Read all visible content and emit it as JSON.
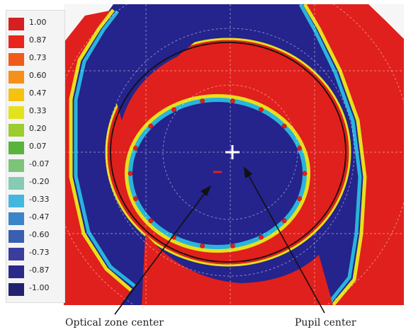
{
  "legend": {
    "entries": [
      {
        "label": "1.00",
        "color": "#d42020"
      },
      {
        "label": "0.87",
        "color": "#e8261b"
      },
      {
        "label": "0.73",
        "color": "#f05a1a"
      },
      {
        "label": "0.60",
        "color": "#f5901a"
      },
      {
        "label": "0.47",
        "color": "#f7c20f"
      },
      {
        "label": "0.33",
        "color": "#e3e21d"
      },
      {
        "label": "0.20",
        "color": "#9ccc2e"
      },
      {
        "label": "0.07",
        "color": "#58b43a"
      },
      {
        "label": "-0.07",
        "color": "#7cc47a"
      },
      {
        "label": "-0.20",
        "color": "#86cbb6"
      },
      {
        "label": "-0.33",
        "color": "#45b6e0"
      },
      {
        "label": "-0.47",
        "color": "#3a84c8"
      },
      {
        "label": "-0.60",
        "color": "#3a5fb0"
      },
      {
        "label": "-0.73",
        "color": "#3a3d9c"
      },
      {
        "label": "-0.87",
        "color": "#2b2a88"
      },
      {
        "label": "-1.00",
        "color": "#232270"
      }
    ]
  },
  "annotations": {
    "optical_zone_center": "Optical zone center",
    "pupil_center": "Pupil center"
  },
  "colors": {
    "map_red": "#e0201c",
    "map_blue": "#25238c",
    "transition_yellow": "#e6e01c",
    "transition_cyan": "#28b4dc"
  }
}
